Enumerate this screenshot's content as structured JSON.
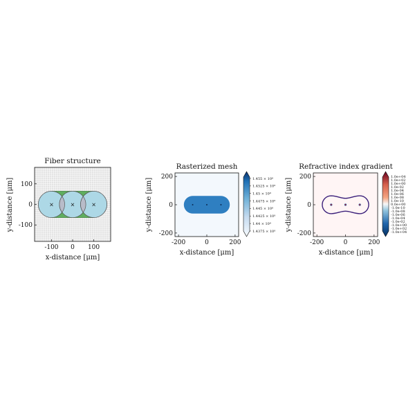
{
  "colors": {
    "fiber_fill": "#add8e6",
    "fiber_edge": "#555555",
    "gap_fill": "#5fae5f",
    "panel_bg": "#e3e3e3",
    "grid": "#ffffff",
    "mesh_fill": "#2f7fc1",
    "mesh_bg": "#f3f8fd",
    "gradient_bg": "#fff5f5",
    "gradient_edge": "#3a1f7a",
    "marker": "#1f3f66"
  },
  "chart_data": [
    {
      "type": "scatter",
      "title": "Fiber structure",
      "xlabel": "x-distance [μm]",
      "ylabel": "y-distance [μm]",
      "xlim": [
        -180,
        180
      ],
      "ylim": [
        -180,
        180
      ],
      "xticks": [
        -100,
        0,
        100
      ],
      "yticks": [
        -100,
        0,
        100
      ],
      "grid": true,
      "fiber_radius": 62.5,
      "cores": [
        {
          "x": -100,
          "y": 0
        },
        {
          "x": 0,
          "y": 0
        },
        {
          "x": 100,
          "y": 0
        }
      ]
    },
    {
      "type": "heatmap",
      "title": "Rasterized mesh",
      "xlabel": "x-distance [μm]",
      "ylabel": "y-distance [μm]",
      "xlim": [
        -225,
        225
      ],
      "ylim": [
        -225,
        225
      ],
      "xticks": [
        -200,
        0,
        200
      ],
      "yticks": [
        -200,
        0,
        200
      ],
      "cores": [
        {
          "x": -100,
          "y": 0
        },
        {
          "x": 0,
          "y": 0
        },
        {
          "x": 100,
          "y": 0
        }
      ],
      "colorbar": {
        "labels": [
          "1.455 × 10⁰",
          "1.4525 × 10⁰",
          "1.45 × 10⁰",
          "1.4475 × 10⁰",
          "1.445 × 10⁰",
          "1.4425 × 10⁰",
          "1.44 × 10⁰",
          "1.4375 × 10⁰"
        ]
      }
    },
    {
      "type": "heatmap",
      "title": "Refractive index gradient",
      "xlabel": "x-distance [μm]",
      "ylabel": "y-distance [μm]",
      "xlim": [
        -225,
        225
      ],
      "ylim": [
        -225,
        225
      ],
      "xticks": [
        -200,
        0,
        200
      ],
      "yticks": [
        -200,
        0,
        200
      ],
      "cores": [
        {
          "x": -100,
          "y": 0
        },
        {
          "x": 0,
          "y": 0
        },
        {
          "x": 100,
          "y": 0
        }
      ],
      "colorbar": {
        "labels": [
          "1.0e+04",
          "1.0e+02",
          "1.0e+00",
          "1.0e-02",
          "1.0e-04",
          "1.0e-06",
          "1.0e-08",
          "1.0e-10",
          "0.0e+00",
          "-1.0e-10",
          "-1.0e-08",
          "-1.0e-06",
          "-1.0e-04",
          "-1.0e-02",
          "-1.0e+00",
          "-1.0e+02",
          "-1.0e+04"
        ]
      }
    }
  ]
}
